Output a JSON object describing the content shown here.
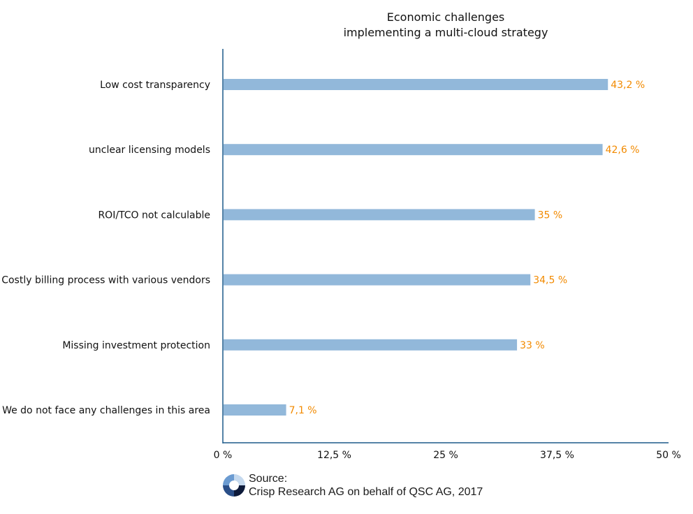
{
  "chart_data": {
    "type": "bar",
    "orientation": "horizontal",
    "title": [
      "Economic challenges",
      "implementing a multi-cloud strategy"
    ],
    "categories": [
      "Low cost transparency",
      "unclear licensing models",
      "ROI/TCO not calculable",
      "Costly billing process with various vendors",
      "Missing investment protection",
      "We do not face any challenges in this area"
    ],
    "values": [
      43.2,
      42.6,
      35,
      34.5,
      33,
      7.1
    ],
    "value_labels": [
      "43,2 %",
      "42,6 %",
      "35 %",
      "34,5 %",
      "33 %",
      "7,1 %"
    ],
    "xlim": [
      0,
      50
    ],
    "x_ticks": [
      0,
      12.5,
      25,
      37.5,
      50
    ],
    "x_tick_labels": [
      "0 %",
      "12,5 %",
      "25 %",
      "37,5 %",
      "50 %"
    ],
    "grid": false,
    "colors": {
      "bar": "#92b8da",
      "value_label": "#f28a00",
      "axis": "#1d5a8a"
    }
  },
  "source": {
    "line1": "Source:",
    "line2": "Crisp Research AG on behalf of QSC AG, 2017"
  },
  "logo": {
    "colors": [
      "#0d1a3a",
      "#2a4e88",
      "#6b9bd1",
      "#c5d9ee"
    ]
  }
}
